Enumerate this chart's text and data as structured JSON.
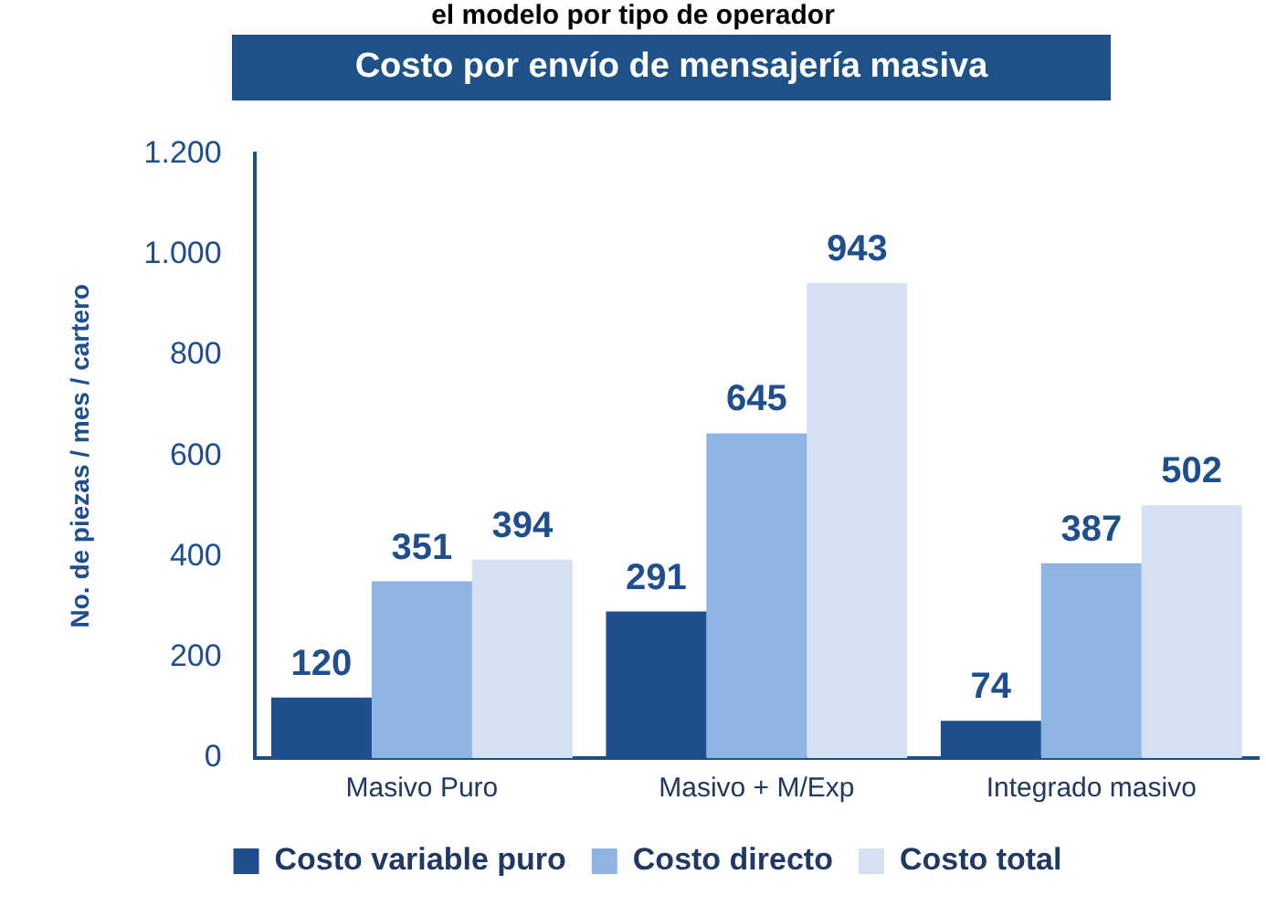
{
  "chart_data": {
    "type": "bar",
    "title": "Costo por envío de mensajería masiva",
    "annotations": [
      "el modelo por tipo de operador"
    ],
    "ylabel": "No. de piezas / mes / cartero",
    "categories": [
      "Masivo Puro",
      "Masivo + M/Exp",
      "Integrado masivo"
    ],
    "series": [
      {
        "name": "Costo variable puro",
        "color": "#1f4e8c",
        "values": [
          120,
          291,
          74
        ]
      },
      {
        "name": "Costo directo",
        "color": "#8db4e2",
        "values": [
          351,
          645,
          387
        ]
      },
      {
        "name": "Costo total",
        "color": "#d6e0f3",
        "values": [
          394,
          943,
          502
        ]
      }
    ],
    "ylim": [
      0,
      1200
    ],
    "yticks": [
      0,
      {
        "value": 200,
        "label": "200"
      },
      {
        "value": 400,
        "label": "400"
      },
      {
        "value": 600,
        "label": "600"
      },
      {
        "value": 800,
        "label": "800"
      },
      {
        "value": 1000,
        "label": "1.000"
      },
      {
        "value": 1200,
        "label": "1.200"
      }
    ],
    "grid": false,
    "legend": "bottom",
    "data_labels": true
  }
}
